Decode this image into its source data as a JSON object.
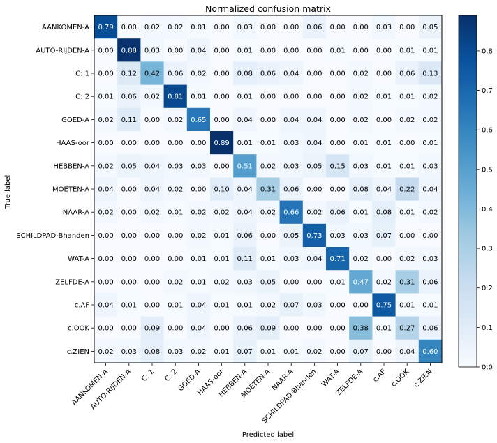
{
  "chart_data": {
    "type": "heatmap",
    "title": "Normalized confusion matrix",
    "xlabel": "Predicted label",
    "ylabel": "True label",
    "row_labels": [
      "AANKOMEN-A",
      "AUTO-RIJDEN-A",
      "C: 1",
      "C: 2",
      "GOED-A",
      "HAAS-oor",
      "HEBBEN-A",
      "MOETEN-A",
      "NAAR-A",
      "SCHILDPAD-Bhanden",
      "WAT-A",
      "ZELFDE-A",
      "c.AF",
      "c.OOK",
      "c.ZIEN"
    ],
    "col_labels": [
      "AANKOMEN-A",
      "AUTO-RIJDEN-A",
      "C: 1",
      "C: 2",
      "GOED-A",
      "HAAS-oor",
      "HEBBEN-A",
      "MOETEN-A",
      "NAAR-A",
      "SCHILDPAD-Bhanden",
      "WAT-A",
      "ZELFDE-A",
      "c.AF",
      "c.OOK",
      "c.ZIEN"
    ],
    "values": [
      [
        0.79,
        0.0,
        0.02,
        0.02,
        0.01,
        0.0,
        0.03,
        0.0,
        0.0,
        0.06,
        0.0,
        0.0,
        0.03,
        0.0,
        0.05
      ],
      [
        0.0,
        0.88,
        0.03,
        0.0,
        0.04,
        0.0,
        0.01,
        0.0,
        0.0,
        0.0,
        0.01,
        0.0,
        0.0,
        0.01,
        0.01
      ],
      [
        0.0,
        0.12,
        0.42,
        0.06,
        0.02,
        0.0,
        0.08,
        0.06,
        0.04,
        0.0,
        0.0,
        0.02,
        0.0,
        0.06,
        0.13
      ],
      [
        0.01,
        0.06,
        0.02,
        0.81,
        0.01,
        0.0,
        0.01,
        0.0,
        0.0,
        0.0,
        0.0,
        0.02,
        0.01,
        0.01,
        0.02
      ],
      [
        0.02,
        0.11,
        0.0,
        0.02,
        0.65,
        0.0,
        0.04,
        0.0,
        0.04,
        0.04,
        0.0,
        0.02,
        0.0,
        0.02,
        0.02
      ],
      [
        0.0,
        0.0,
        0.0,
        0.0,
        0.0,
        0.89,
        0.01,
        0.01,
        0.03,
        0.04,
        0.0,
        0.01,
        0.01,
        0.0,
        0.01
      ],
      [
        0.02,
        0.05,
        0.04,
        0.03,
        0.03,
        0.0,
        0.51,
        0.02,
        0.03,
        0.05,
        0.15,
        0.03,
        0.01,
        0.01,
        0.03
      ],
      [
        0.04,
        0.0,
        0.04,
        0.02,
        0.0,
        0.1,
        0.04,
        0.31,
        0.06,
        0.0,
        0.0,
        0.08,
        0.04,
        0.22,
        0.04
      ],
      [
        0.02,
        0.0,
        0.02,
        0.01,
        0.02,
        0.02,
        0.04,
        0.02,
        0.66,
        0.02,
        0.06,
        0.01,
        0.08,
        0.01,
        0.02
      ],
      [
        0.0,
        0.0,
        0.0,
        0.0,
        0.02,
        0.01,
        0.06,
        0.0,
        0.05,
        0.73,
        0.03,
        0.03,
        0.07,
        0.0,
        0.0
      ],
      [
        0.0,
        0.0,
        0.0,
        0.0,
        0.01,
        0.01,
        0.11,
        0.01,
        0.03,
        0.04,
        0.71,
        0.02,
        0.0,
        0.02,
        0.03
      ],
      [
        0.0,
        0.0,
        0.0,
        0.02,
        0.01,
        0.02,
        0.03,
        0.05,
        0.0,
        0.0,
        0.01,
        0.47,
        0.02,
        0.31,
        0.06
      ],
      [
        0.04,
        0.01,
        0.0,
        0.01,
        0.04,
        0.01,
        0.01,
        0.02,
        0.07,
        0.03,
        0.0,
        0.0,
        0.75,
        0.01,
        0.01
      ],
      [
        0.0,
        0.0,
        0.09,
        0.0,
        0.04,
        0.0,
        0.06,
        0.09,
        0.0,
        0.0,
        0.0,
        0.38,
        0.01,
        0.27,
        0.06
      ],
      [
        0.02,
        0.03,
        0.08,
        0.03,
        0.02,
        0.01,
        0.07,
        0.01,
        0.01,
        0.02,
        0.0,
        0.07,
        0.0,
        0.04,
        0.6
      ]
    ],
    "colormap": "Blues",
    "color_low": "#f7fbff",
    "color_high": "#08306b",
    "vmin": 0.0,
    "vmax": 0.89,
    "colorbar_ticks": [
      0.0,
      0.1,
      0.2,
      0.3,
      0.4,
      0.5,
      0.6,
      0.7,
      0.8
    ],
    "colorbar_tick_labels": [
      "0.0",
      "0.1",
      "0.2",
      "0.3",
      "0.4",
      "0.5",
      "0.6",
      "0.7",
      "0.8"
    ],
    "grid": false,
    "annotation_format": "0.00"
  }
}
